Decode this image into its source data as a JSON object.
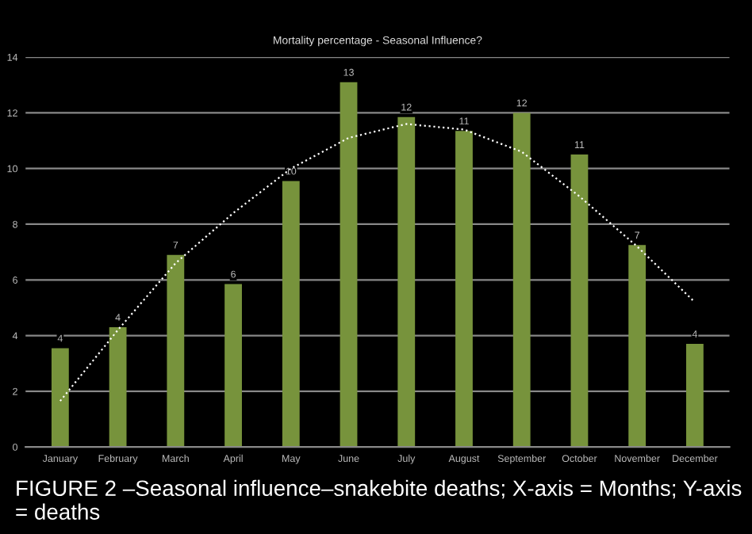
{
  "chart_data": {
    "type": "bar",
    "title": "Mortality percentage - Seasonal Influence?",
    "categories": [
      "January",
      "February",
      "March",
      "April",
      "May",
      "June",
      "July",
      "August",
      "September",
      "October",
      "November",
      "December"
    ],
    "series": [
      {
        "color": "#77933c",
        "values": [
          3.55,
          4.3,
          6.9,
          5.85,
          9.55,
          13.1,
          11.85,
          11.35,
          12.0,
          10.5,
          7.25,
          3.7
        ],
        "value_labels": [
          "4",
          "4",
          "7",
          "6",
          "10",
          "13",
          "12",
          "11",
          "12",
          "11",
          "7",
          "4"
        ]
      },
      {
        "type": "line",
        "color": "#ffffff",
        "line_style": "dotted",
        "values": [
          1.65,
          4.2,
          6.6,
          8.4,
          10.0,
          11.1,
          11.6,
          11.4,
          10.6,
          9.0,
          7.2,
          5.2
        ]
      }
    ],
    "ylim": [
      0,
      14
    ],
    "yticks": [
      0,
      2,
      4,
      6,
      8,
      10,
      12,
      14
    ],
    "grid": "y",
    "annotations": [
      "FIGURE 2 –Seasonal influence–snakebite deaths; X-axis = Months; Y-axis = deaths"
    ]
  }
}
